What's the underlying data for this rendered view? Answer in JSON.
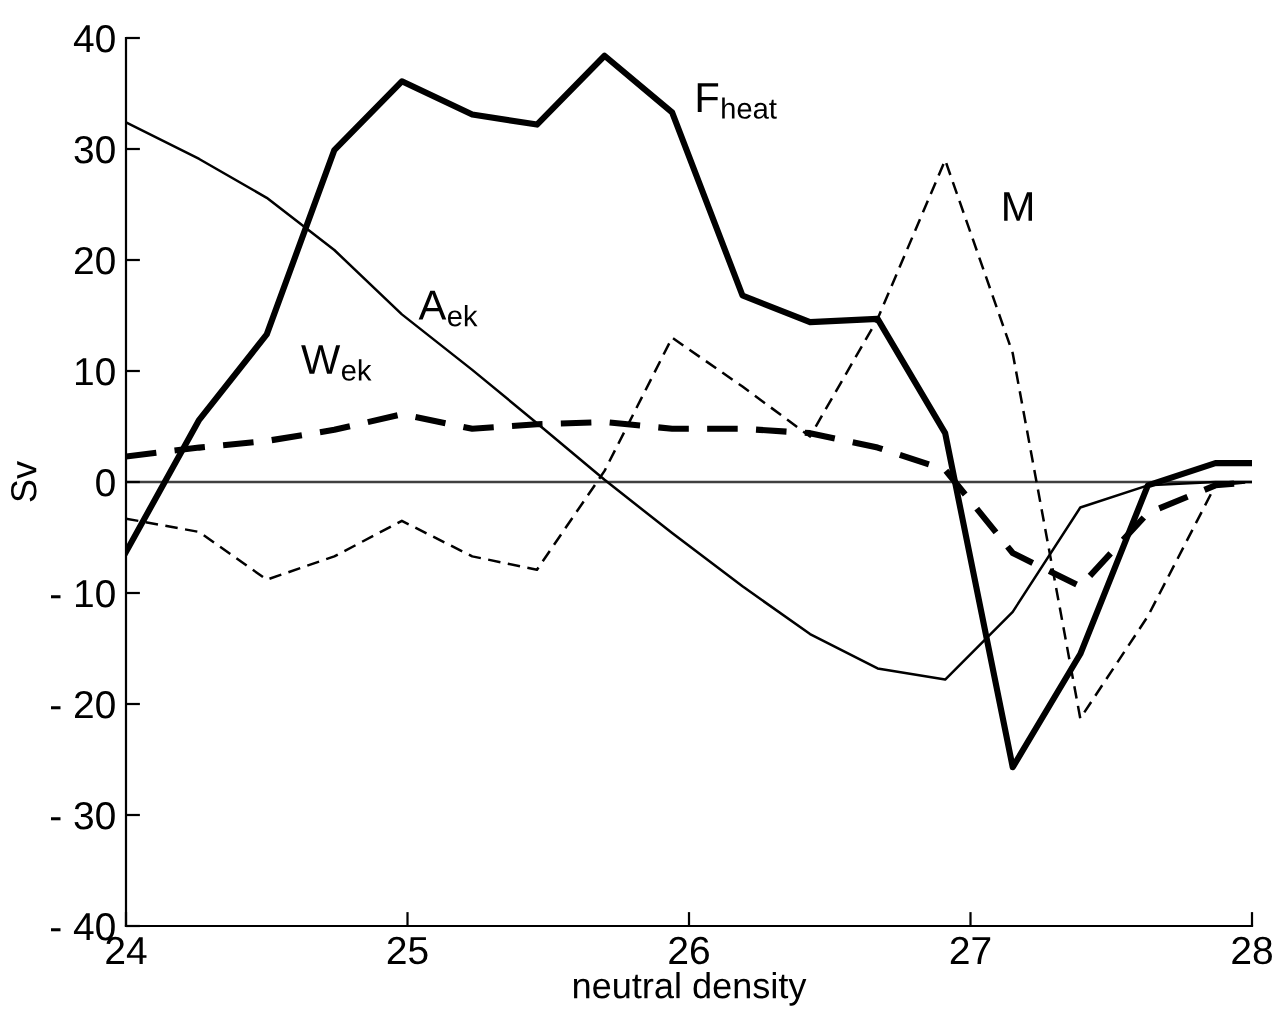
{
  "chart_data": {
    "type": "line",
    "xlabel": "neutral density",
    "ylabel": "Sv",
    "x": [
      24,
      24.26,
      24.5,
      24.74,
      24.98,
      25.23,
      25.46,
      25.7,
      25.94,
      26.19,
      26.43,
      26.67,
      26.91,
      27.15,
      27.39,
      27.63,
      27.87,
      28
    ],
    "series": [
      {
        "name": "F$_{heat}$",
        "color": "#000000",
        "line_style": "solid",
        "values": [
          -6.3,
          5.6,
          13.3,
          29.9,
          36.1,
          33.1,
          32.2,
          38.4,
          33.3,
          16.8,
          14.4,
          14.7,
          4.4,
          -25.7,
          -15.5,
          -0.3,
          1.7,
          1.7
        ]
      },
      {
        "name": "A$_{ek}$",
        "color": "#000000",
        "line_style": "solid",
        "values": [
          32.4,
          29.1,
          25.6,
          20.9,
          15.1,
          10.1,
          5.3,
          0.2,
          -4.6,
          -9.4,
          -13.7,
          -16.8,
          -17.8,
          -11.7,
          -2.3,
          -0.3,
          0,
          0
        ]
      },
      {
        "name": "W$_{ek}$",
        "color": "#000000",
        "line_style": "dashed",
        "values": [
          2.3,
          3.1,
          3.7,
          4.7,
          6.1,
          4.8,
          5.2,
          5.4,
          4.8,
          4.8,
          4.4,
          3.1,
          1.1,
          -6.4,
          -9.4,
          -2.8,
          -0.3,
          0
        ]
      },
      {
        "name": "M",
        "color": "#000000",
        "line_style": "dashed",
        "values": [
          -3.3,
          -4.5,
          -8.8,
          -6.7,
          -3.5,
          -6.7,
          -7.9,
          1.0,
          13.0,
          8.6,
          4.1,
          14.7,
          29.0,
          11.6,
          -21.3,
          -12.1,
          -0.3,
          0
        ]
      }
    ],
    "xlim": [
      24,
      28
    ],
    "xticks": [
      24,
      25,
      26,
      27,
      28
    ],
    "ylim": [
      -40,
      40
    ],
    "yticks": [
      {
        "value": -40,
        "label": "- 40"
      },
      {
        "value": -30,
        "label": "- 30"
      },
      {
        "value": -20,
        "label": "- 20"
      },
      {
        "value": -10,
        "label": "- 10"
      },
      0,
      10,
      20,
      30,
      40
    ],
    "ref_lines": [
      {
        "axis": "y",
        "value": 0,
        "color": "#404040",
        "line_style": "solid"
      }
    ],
    "grid": false,
    "legend": false,
    "marker": "none"
  }
}
